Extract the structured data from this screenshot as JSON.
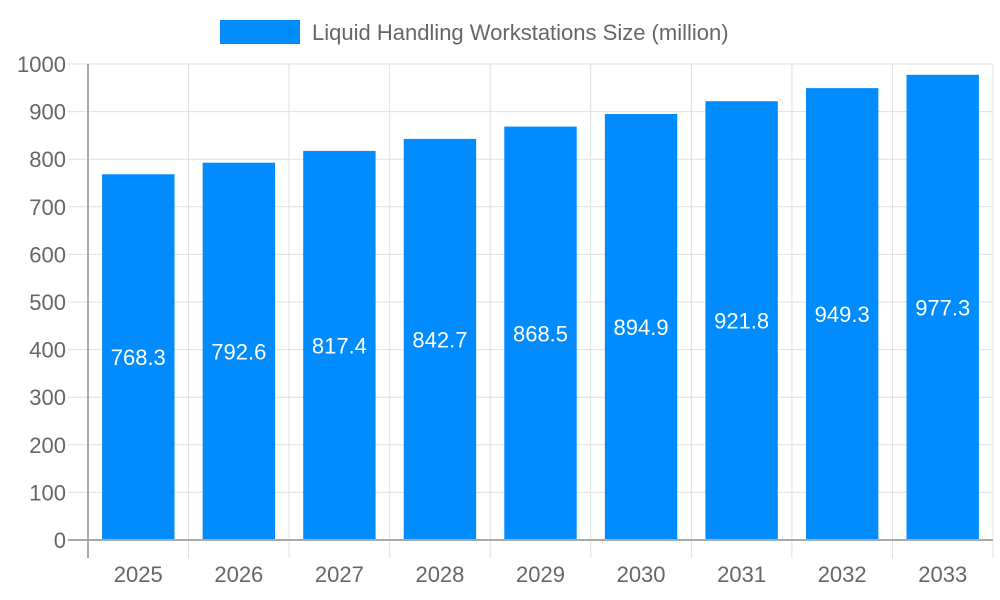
{
  "chart_data": {
    "type": "bar",
    "categories": [
      "2025",
      "2026",
      "2027",
      "2028",
      "2029",
      "2030",
      "2031",
      "2032",
      "2033"
    ],
    "series": [
      {
        "name": "Liquid Handling Workstations Size (million)",
        "values": [
          768.3,
          792.6,
          817.4,
          842.7,
          868.5,
          894.9,
          921.8,
          949.3,
          977.3
        ],
        "color": "#008cff"
      }
    ],
    "data_labels": [
      "768.3",
      "792.6",
      "817.4",
      "842.7",
      "868.5",
      "894.9",
      "921.8",
      "949.3",
      "977.3"
    ],
    "ylim": [
      0,
      1000
    ],
    "yticks": [
      "0",
      "100",
      "200",
      "300",
      "400",
      "500",
      "600",
      "700",
      "800",
      "900",
      "1000"
    ],
    "grid": true,
    "legend": "top-center"
  }
}
